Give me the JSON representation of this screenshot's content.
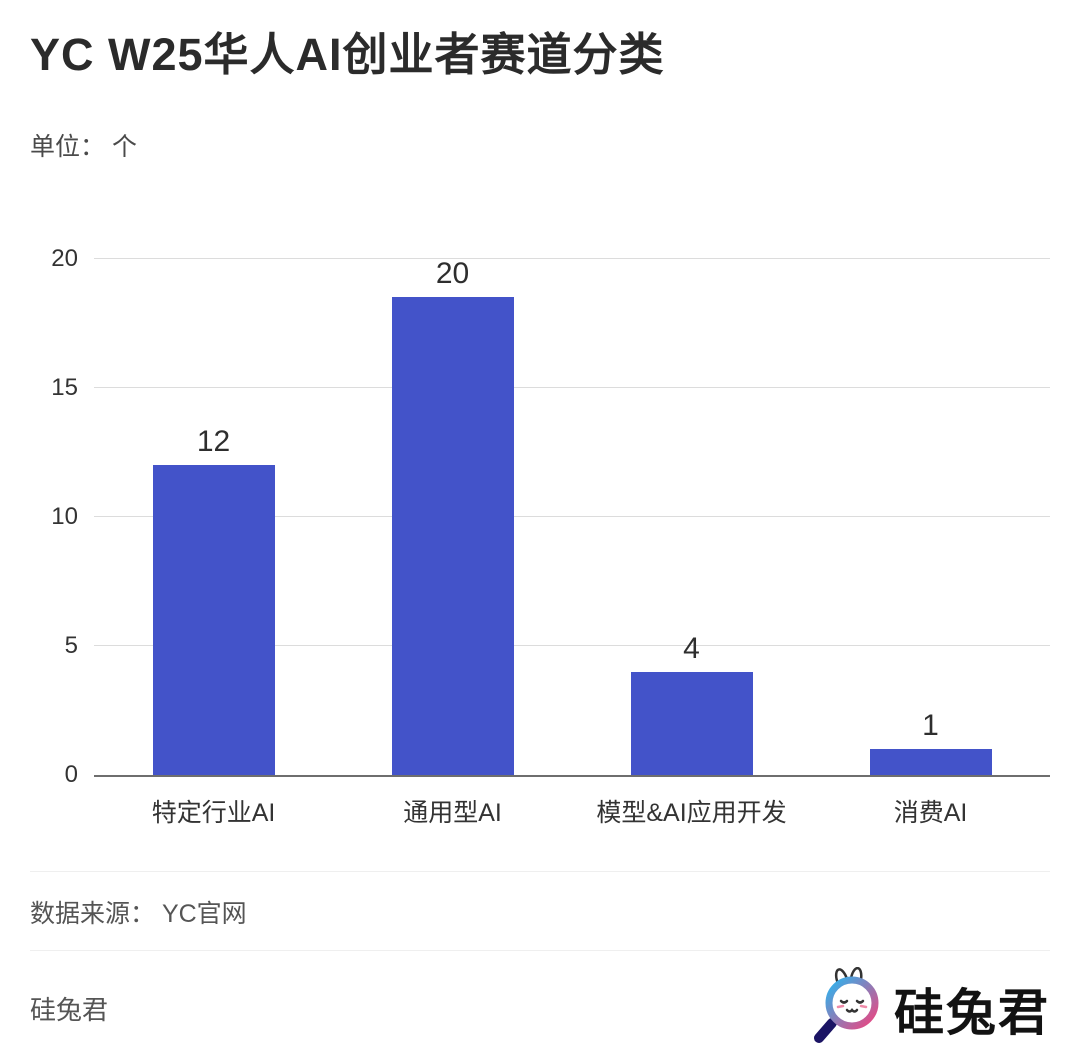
{
  "title": "YC W25华人AI创业者赛道分类",
  "unit_label": "单位： 个",
  "source_label": "数据来源： YC官网",
  "footer": {
    "author": "硅兔君",
    "logo_text": "硅兔君"
  },
  "colors": {
    "bar": "#4353c9",
    "axis": "#6e6e6e",
    "gridline": "#dcdcdc",
    "logo_blue": "#29b5f0",
    "logo_pink": "#f0437e",
    "logo_handle": "#1b1464"
  },
  "chart_data": {
    "type": "bar",
    "categories": [
      "特定行业AI",
      "通用型AI",
      "模型&AI应用开发",
      "消费AI"
    ],
    "values": [
      12,
      20,
      4,
      1
    ],
    "title": "YC W25华人AI创业者赛道分类",
    "xlabel": "",
    "ylabel": "单位：个",
    "ylim": [
      0,
      20
    ],
    "yticks": [
      0,
      5,
      10,
      15,
      20
    ],
    "grid": true,
    "legend": false
  }
}
